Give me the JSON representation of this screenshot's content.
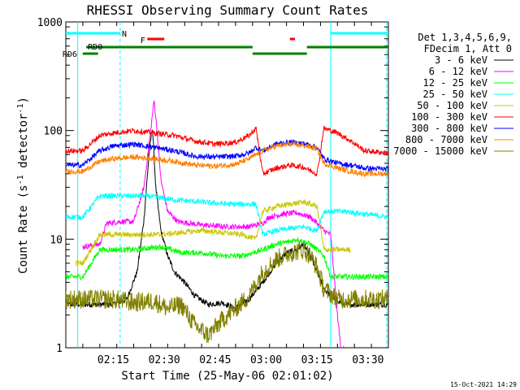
{
  "chart_data": {
    "type": "line",
    "title": "RHESSI Observing Summary Count Rates",
    "xlabel": "Start Time (25-May-06 02:01:02)",
    "ylabel": "Count Rate (s⁻¹ detector⁻¹)",
    "ylabel_parts": {
      "base": "Count Rate (s",
      "exp1": "-1",
      "mid": " detector",
      "exp2": "-1",
      "end": ")"
    },
    "y_scale": "log",
    "ylim": [
      1,
      1000
    ],
    "xlim_minutes": [
      0,
      95
    ],
    "x_ticks": [
      {
        "min": 14,
        "label": "02:15"
      },
      {
        "min": 29,
        "label": "02:30"
      },
      {
        "min": 44,
        "label": "02:45"
      },
      {
        "min": 59,
        "label": "03:00"
      },
      {
        "min": 74,
        "label": "03:15"
      },
      {
        "min": 89,
        "label": "03:30"
      }
    ],
    "y_ticks": [
      {
        "value": 1,
        "label": "1"
      },
      {
        "value": 10,
        "label": "10"
      },
      {
        "value": 100,
        "label": "100"
      },
      {
        "value": 1000,
        "label": "1000"
      }
    ],
    "legend": {
      "header": [
        "Det 1,3,4,5,6,9,",
        "FDecim 1, Att 0"
      ],
      "placement": "right"
    },
    "series": [
      {
        "name": "3 - 6 keV",
        "color": "#000000",
        "points": [
          [
            0,
            2.5
          ],
          [
            8,
            2.5
          ],
          [
            14,
            2.5
          ],
          [
            18,
            2.8
          ],
          [
            21,
            5
          ],
          [
            23,
            15
          ],
          [
            24.5,
            60
          ],
          [
            25.5,
            110
          ],
          [
            26.5,
            30
          ],
          [
            28,
            12
          ],
          [
            30,
            7
          ],
          [
            32,
            5
          ],
          [
            35,
            4
          ],
          [
            38,
            3
          ],
          [
            42,
            2.5
          ],
          [
            46,
            2.6
          ],
          [
            50,
            2.3
          ],
          [
            54,
            2.8
          ],
          [
            58,
            4
          ],
          [
            62,
            6
          ],
          [
            65,
            7.5
          ],
          [
            68,
            8
          ],
          [
            70,
            9
          ],
          [
            72,
            7
          ],
          [
            74,
            5
          ],
          [
            76,
            3.5
          ],
          [
            78,
            3
          ],
          [
            82,
            2.5
          ],
          [
            90,
            2.5
          ],
          [
            95,
            2.5
          ]
        ]
      },
      {
        "name": "6 - 12 keV",
        "color": "#ff00ff",
        "points": [
          [
            5,
            8.5
          ],
          [
            10,
            9
          ],
          [
            12,
            14
          ],
          [
            16,
            14.5
          ],
          [
            20,
            14.5
          ],
          [
            23,
            30
          ],
          [
            25,
            100
          ],
          [
            26,
            190
          ],
          [
            27,
            90
          ],
          [
            28,
            35
          ],
          [
            30,
            18
          ],
          [
            33,
            14.5
          ],
          [
            40,
            13.5
          ],
          [
            48,
            13
          ],
          [
            54,
            13
          ],
          [
            58,
            14
          ],
          [
            60,
            16
          ],
          [
            64,
            17
          ],
          [
            68,
            17.5
          ],
          [
            72,
            16
          ],
          [
            74,
            14
          ],
          [
            76,
            12
          ],
          [
            78,
            11
          ],
          [
            80,
            2
          ],
          [
            81,
            1
          ],
          [
            82,
            1
          ]
        ]
      },
      {
        "name": "12 - 25 keV",
        "color": "#00ff00",
        "points": [
          [
            0,
            4.5
          ],
          [
            5,
            4.5
          ],
          [
            10,
            8
          ],
          [
            14,
            8
          ],
          [
            20,
            8
          ],
          [
            28,
            8.5
          ],
          [
            34,
            7.5
          ],
          [
            40,
            7.5
          ],
          [
            46,
            7
          ],
          [
            52,
            7
          ],
          [
            58,
            8
          ],
          [
            62,
            9
          ],
          [
            66,
            9.5
          ],
          [
            68,
            10
          ],
          [
            72,
            9
          ],
          [
            74,
            8
          ],
          [
            76,
            7
          ],
          [
            78,
            4.5
          ],
          [
            95,
            4.5
          ]
        ]
      },
      {
        "name": "25 - 50 keV",
        "color": "#00ffff",
        "points": [
          [
            0,
            16
          ],
          [
            5,
            16
          ],
          [
            10,
            25
          ],
          [
            16,
            25
          ],
          [
            24,
            25
          ],
          [
            32,
            23
          ],
          [
            40,
            22
          ],
          [
            48,
            21
          ],
          [
            56,
            21
          ],
          [
            58,
            11
          ],
          [
            62,
            12
          ],
          [
            66,
            12.5
          ],
          [
            70,
            13
          ],
          [
            74,
            12
          ],
          [
            76,
            18
          ],
          [
            82,
            18
          ],
          [
            88,
            17
          ],
          [
            95,
            16
          ]
        ]
      },
      {
        "name": "50 - 100 keV",
        "color": "#c8c800",
        "points": [
          [
            3,
            6
          ],
          [
            5,
            6
          ],
          [
            10,
            11
          ],
          [
            14,
            11
          ],
          [
            20,
            11
          ],
          [
            28,
            11
          ],
          [
            34,
            11.5
          ],
          [
            40,
            12
          ],
          [
            46,
            11.5
          ],
          [
            52,
            11
          ],
          [
            56,
            10
          ],
          [
            58,
            18
          ],
          [
            62,
            20
          ],
          [
            66,
            21
          ],
          [
            70,
            22
          ],
          [
            74,
            20
          ],
          [
            76,
            8
          ],
          [
            82,
            8
          ],
          [
            84,
            8
          ]
        ]
      },
      {
        "name": "100 - 300 keV",
        "color": "#ff0000",
        "points": [
          [
            0,
            65
          ],
          [
            5,
            65
          ],
          [
            10,
            90
          ],
          [
            14,
            95
          ],
          [
            20,
            100
          ],
          [
            26,
            95
          ],
          [
            32,
            90
          ],
          [
            38,
            80
          ],
          [
            44,
            75
          ],
          [
            50,
            78
          ],
          [
            54,
            90
          ],
          [
            56,
            105
          ],
          [
            58,
            40
          ],
          [
            62,
            45
          ],
          [
            66,
            48
          ],
          [
            70,
            46
          ],
          [
            74,
            40
          ],
          [
            76,
            105
          ],
          [
            80,
            95
          ],
          [
            84,
            80
          ],
          [
            88,
            65
          ],
          [
            95,
            62
          ]
        ]
      },
      {
        "name": "300 - 800 keV",
        "color": "#0000ff",
        "points": [
          [
            0,
            48
          ],
          [
            5,
            48
          ],
          [
            10,
            65
          ],
          [
            14,
            72
          ],
          [
            20,
            75
          ],
          [
            26,
            70
          ],
          [
            32,
            65
          ],
          [
            38,
            58
          ],
          [
            44,
            57
          ],
          [
            50,
            58
          ],
          [
            54,
            62
          ],
          [
            56,
            70
          ],
          [
            58,
            65
          ],
          [
            62,
            75
          ],
          [
            66,
            78
          ],
          [
            70,
            76
          ],
          [
            74,
            70
          ],
          [
            76,
            55
          ],
          [
            80,
            50
          ],
          [
            84,
            48
          ],
          [
            88,
            45
          ],
          [
            95,
            44
          ]
        ]
      },
      {
        "name": "800 - 7000 keV",
        "color": "#ff8000",
        "points": [
          [
            0,
            42
          ],
          [
            5,
            42
          ],
          [
            10,
            52
          ],
          [
            14,
            55
          ],
          [
            20,
            57
          ],
          [
            26,
            55
          ],
          [
            32,
            52
          ],
          [
            38,
            48
          ],
          [
            44,
            47
          ],
          [
            50,
            49
          ],
          [
            54,
            55
          ],
          [
            56,
            60
          ],
          [
            58,
            65
          ],
          [
            62,
            72
          ],
          [
            66,
            75
          ],
          [
            70,
            73
          ],
          [
            74,
            68
          ],
          [
            76,
            50
          ],
          [
            80,
            45
          ],
          [
            84,
            42
          ],
          [
            88,
            40
          ],
          [
            95,
            40
          ]
        ]
      },
      {
        "name": "7000 - 15000 keV",
        "color": "#808000",
        "points": [
          [
            0,
            2.8
          ],
          [
            8,
            2.8
          ],
          [
            14,
            2.8
          ],
          [
            20,
            2.6
          ],
          [
            26,
            2.7
          ],
          [
            30,
            2.3
          ],
          [
            34,
            2.5
          ],
          [
            38,
            1.6
          ],
          [
            42,
            1.3
          ],
          [
            46,
            1.8
          ],
          [
            50,
            2.3
          ],
          [
            54,
            3
          ],
          [
            58,
            5
          ],
          [
            62,
            6.5
          ],
          [
            66,
            7.5
          ],
          [
            70,
            8
          ],
          [
            72,
            7
          ],
          [
            74,
            5.5
          ],
          [
            76,
            3.5
          ],
          [
            80,
            2.8
          ],
          [
            95,
            2.8
          ]
        ]
      }
    ],
    "status_bars": [
      {
        "label": "N",
        "color": "#00ffff",
        "segments": [
          [
            0,
            16
          ],
          [
            78,
            95
          ]
        ],
        "level": "top"
      },
      {
        "label": "F",
        "color": "#ff0000",
        "segments": [
          [
            24,
            29
          ],
          [
            66,
            67.5
          ]
        ],
        "level": "flare"
      },
      {
        "label": "RD0",
        "color": "#008000",
        "segments": [
          [
            6,
            55
          ],
          [
            71,
            95
          ]
        ],
        "level": "upper"
      },
      {
        "label": "RD6",
        "color": "#008000",
        "segments": [
          [
            5,
            9.5
          ],
          [
            55,
            71
          ]
        ],
        "level": "lower"
      }
    ],
    "vertical_markers": [
      {
        "min": 3.5,
        "color": "#00ffff",
        "style": "solid"
      },
      {
        "min": 16,
        "color": "#00ffff",
        "style": "dashed"
      },
      {
        "min": 78,
        "color": "#00ffff",
        "style": "solid"
      },
      {
        "min": 94.5,
        "color": "#00ffff",
        "style": "dashed"
      }
    ]
  },
  "footer": {
    "timestamp": "15-Oct-2021 14:29"
  }
}
